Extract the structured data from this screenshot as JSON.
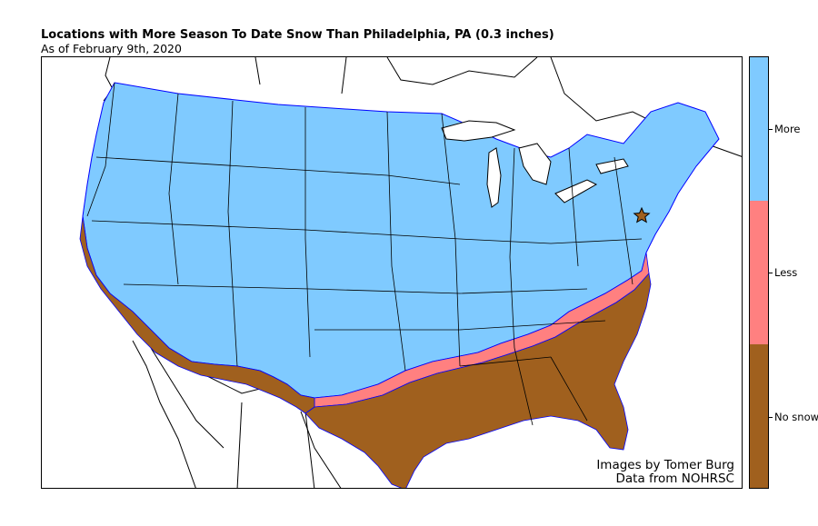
{
  "title": "Locations with More Season To Date Snow Than Philadelphia,  PA (0.3 inches)",
  "subtitle": "As of February 9th, 2020",
  "credits": {
    "line1": "Images by Tomer Burg",
    "line2": "Data from NOHRSC"
  },
  "legend": {
    "categories": [
      {
        "label": "More",
        "color": "#7fcaff"
      },
      {
        "label": "Less",
        "color": "#ff8080"
      },
      {
        "label": "No snow",
        "color": "#a0601e"
      }
    ]
  },
  "map": {
    "region": "Contiguous United States",
    "reference_city": "Philadelphia, PA",
    "reference_marker": "star-icon",
    "land_color": "#ffffff",
    "border_color": "#000000",
    "snow_edge_color": "#0000ff"
  }
}
